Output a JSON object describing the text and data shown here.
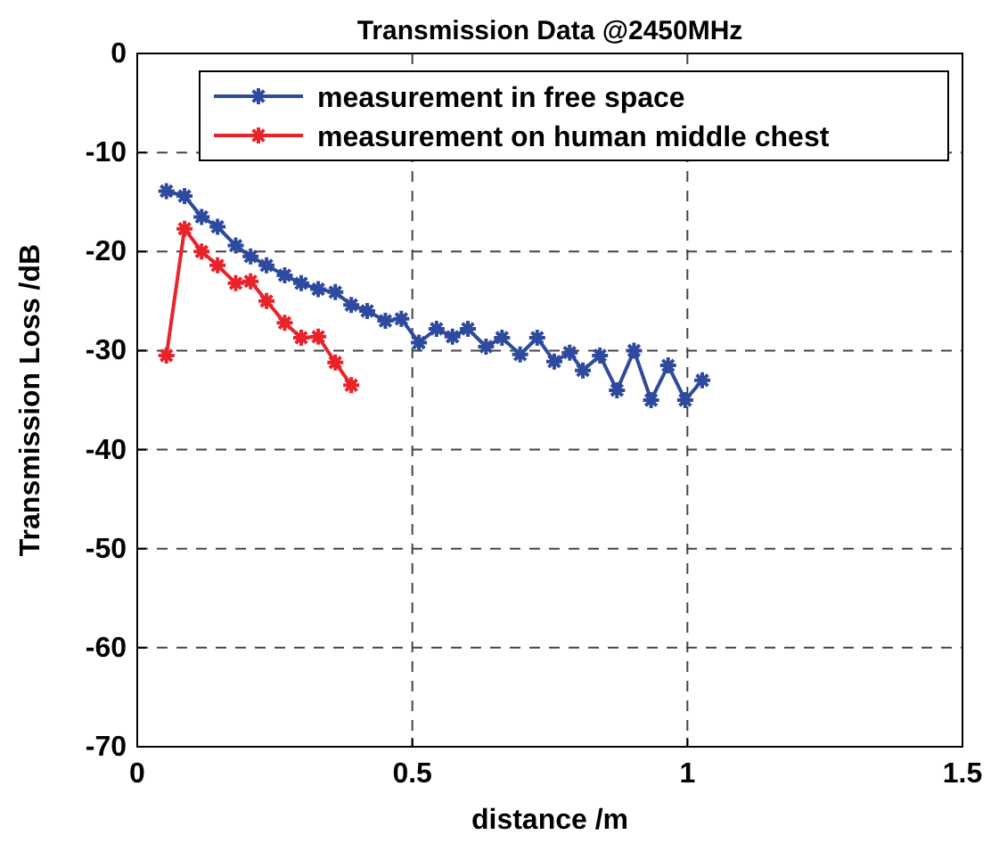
{
  "chart_data": {
    "type": "line",
    "title": "Transmission Data @2450MHz",
    "xlabel": "distance /m",
    "ylabel": "Transmission Loss /dB",
    "xlim": [
      0,
      1.5
    ],
    "xticks": [
      0,
      0.5,
      1,
      1.5
    ],
    "ylim": [
      -70,
      0
    ],
    "yticks": [
      -70,
      -60,
      -50,
      -40,
      -30,
      -20,
      -10,
      0
    ],
    "grid": true,
    "legend": "top right",
    "marker": "cross",
    "line_style": "solid",
    "series": [
      {
        "name": "measurement in free space",
        "color": "#2e4a9e",
        "x": [
          0.053,
          0.086,
          0.117,
          0.146,
          0.179,
          0.206,
          0.235,
          0.268,
          0.298,
          0.329,
          0.36,
          0.389,
          0.418,
          0.451,
          0.48,
          0.512,
          0.544,
          0.573,
          0.601,
          0.634,
          0.663,
          0.696,
          0.727,
          0.758,
          0.786,
          0.81,
          0.841,
          0.872,
          0.903,
          0.934,
          0.965,
          0.996,
          1.027
        ],
        "values": [
          -13.9,
          -14.4,
          -16.5,
          -17.5,
          -19.4,
          -20.5,
          -21.4,
          -22.4,
          -23.2,
          -23.8,
          -24.1,
          -25.4,
          -26,
          -27,
          -26.8,
          -29.2,
          -27.8,
          -28.6,
          -27.8,
          -29.6,
          -28.7,
          -30.4,
          -28.7,
          -31.1,
          -30.2,
          -32,
          -30.5,
          -34,
          -30,
          -35,
          -31.5,
          -35,
          -33
        ]
      },
      {
        "name": "measurement on human middle chest",
        "color": "#e8232a",
        "x": [
          0.053,
          0.086,
          0.117,
          0.146,
          0.179,
          0.206,
          0.235,
          0.268,
          0.298,
          0.329,
          0.36,
          0.389
        ],
        "values": [
          -30.5,
          -17.7,
          -20,
          -21.4,
          -23.2,
          -23,
          -25,
          -27.2,
          -28.7,
          -28.6,
          -31.2,
          -33.5
        ]
      }
    ]
  }
}
